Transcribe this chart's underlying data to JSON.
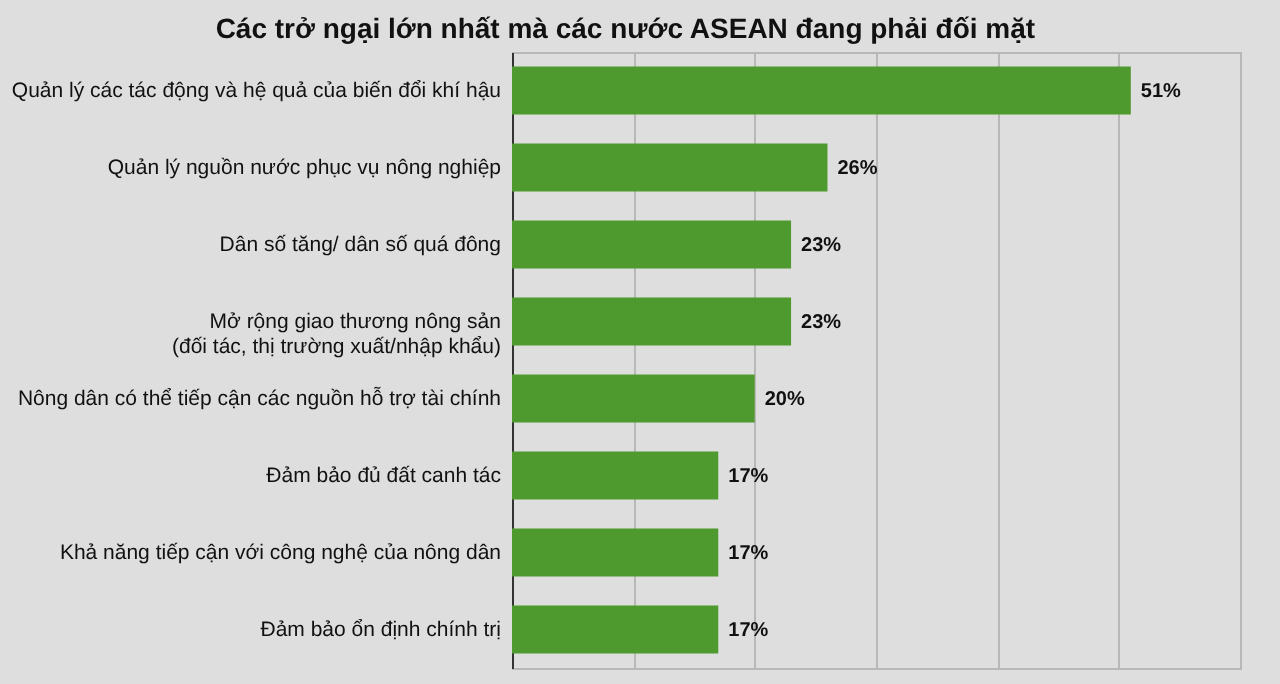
{
  "chart_data": {
    "type": "bar",
    "orientation": "horizontal",
    "title": "Các trở ngại lớn nhất mà các nước ASEAN đang phải đối mặt",
    "categories": [
      "Quản lý các tác động và hệ quả của biến đổi khí hậu",
      "Quản lý nguồn nước phục vụ nông nghiệp",
      "Dân số tăng/ dân số quá đông",
      "Mở rộng giao thương nông sản\n(đối tác, thị trường xuất/nhập khẩu)",
      "Nông dân có thể tiếp cận các nguồn hỗ trợ tài chính",
      "Đảm bảo đủ đất canh tác",
      "Khả năng tiếp cận với công nghệ của nông dân",
      "Đảm bảo ổn định chính trị"
    ],
    "values": [
      51,
      26,
      23,
      23,
      20,
      17,
      17,
      17
    ],
    "value_labels": [
      "51%",
      "26%",
      "23%",
      "23%",
      "20%",
      "17%",
      "17%",
      "17%"
    ],
    "color": "#4e9a2e",
    "xlim": [
      0,
      60
    ],
    "xticks": [
      {
        "value": 0,
        "label": null
      },
      {
        "value": 10,
        "label": null
      },
      {
        "value": 20,
        "label": null
      },
      {
        "value": 30,
        "label": null
      },
      {
        "value": 40,
        "label": null
      },
      {
        "value": 50,
        "label": null
      },
      {
        "value": 60,
        "label": null
      }
    ],
    "grid": "x",
    "tick_labels": "y"
  }
}
